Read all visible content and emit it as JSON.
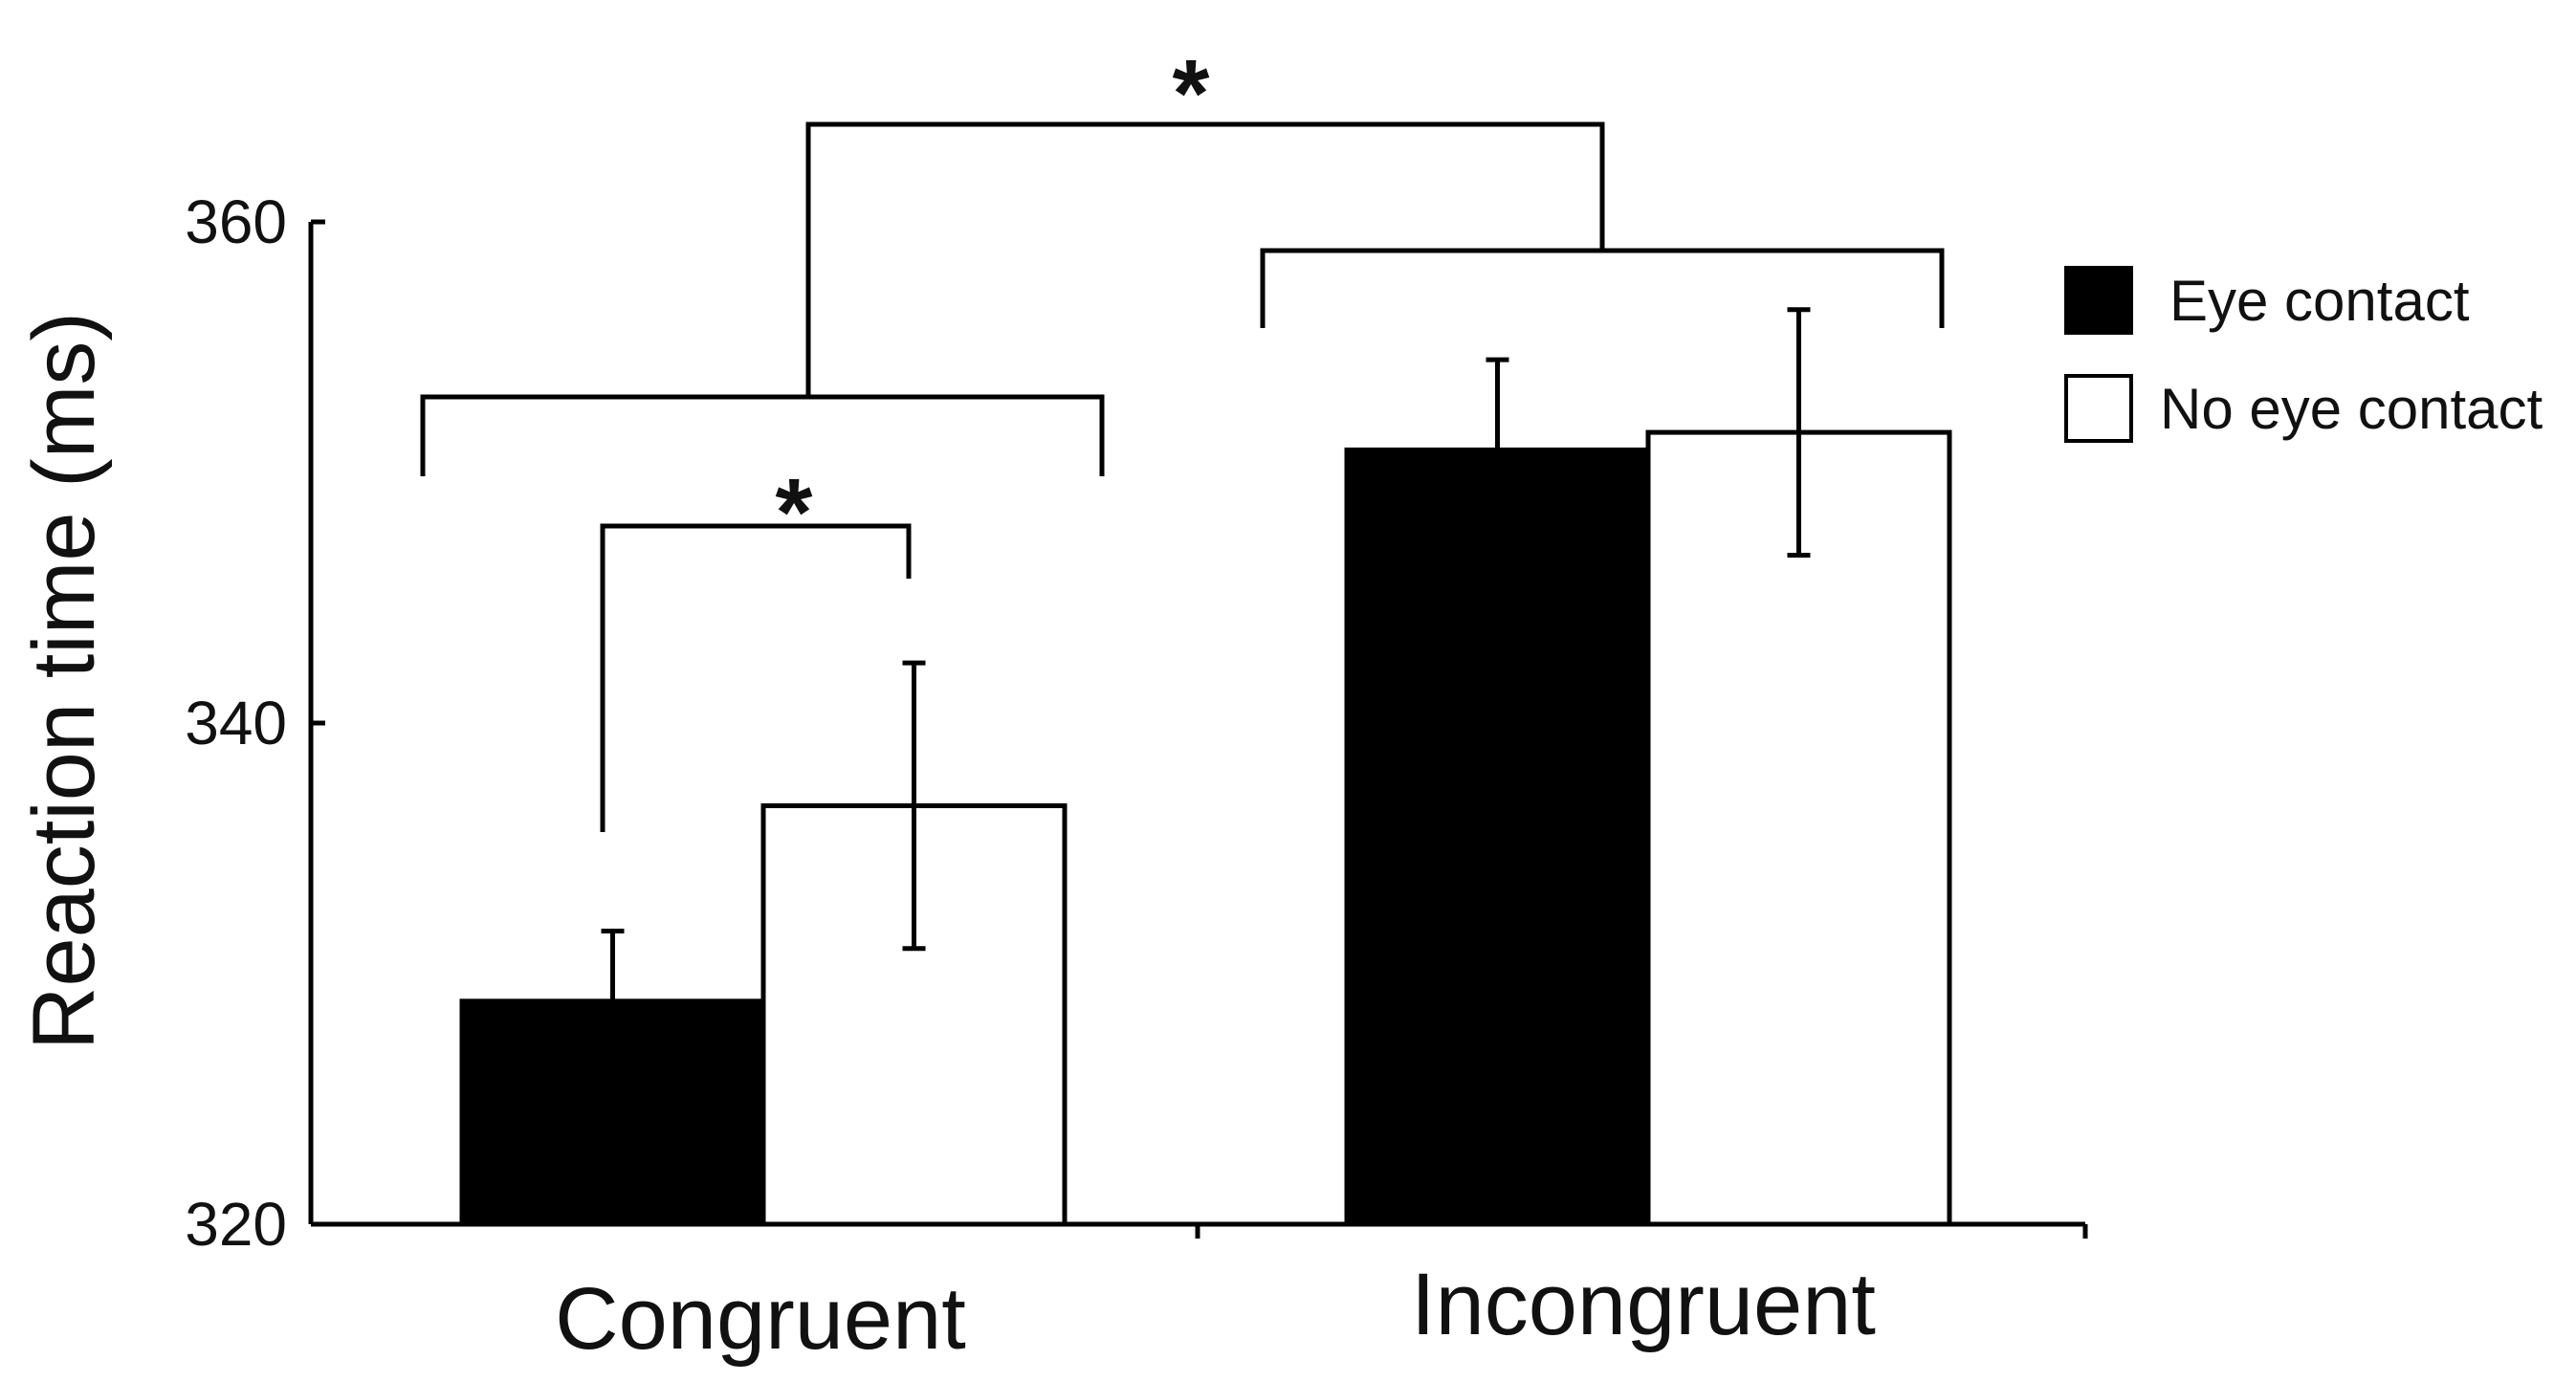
{
  "chart_data": {
    "type": "bar",
    "title": "",
    "xlabel": "",
    "ylabel": "Reaction time (ms)",
    "ylim": [
      320,
      360
    ],
    "yticks": [
      320,
      340,
      360
    ],
    "categories": [
      "Congruent",
      "Incongruent"
    ],
    "series": [
      {
        "name": "Eye contact",
        "color": "#000000",
        "values": [
          328.9,
          350.9
        ],
        "errors": [
          2.8,
          3.6
        ]
      },
      {
        "name": "No eye contact",
        "color": "#ffffff",
        "values": [
          336.7,
          351.6
        ],
        "errors": [
          5.7,
          4.9
        ]
      }
    ],
    "legend_position": "right",
    "grid": false,
    "significance": [
      {
        "label": "*",
        "between": "Congruent: Eye contact vs No eye contact"
      },
      {
        "label": "*",
        "between": "Congruent vs Incongruent"
      }
    ]
  }
}
